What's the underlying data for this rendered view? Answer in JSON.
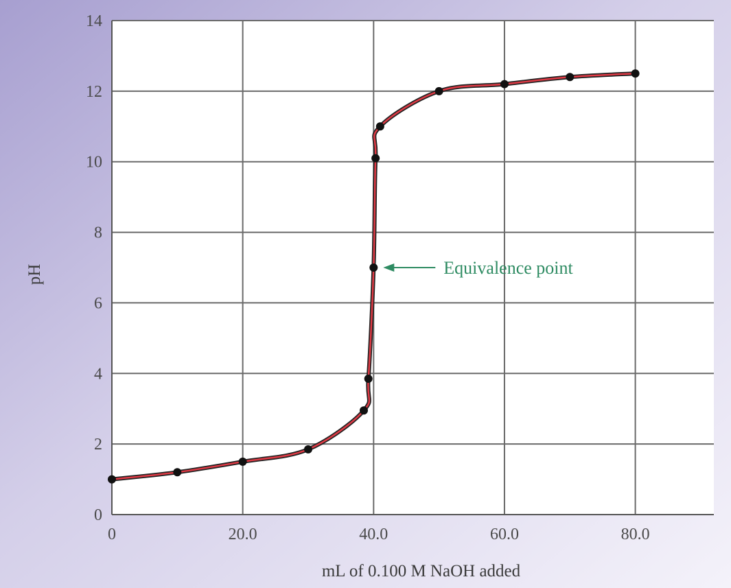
{
  "chart_data": {
    "type": "line",
    "xlabel": "mL of 0.100 M NaOH added",
    "ylabel": "pH",
    "xlim": [
      0,
      92
    ],
    "ylim": [
      0,
      14
    ],
    "x_ticks": [
      0,
      20,
      40,
      60,
      80
    ],
    "x_tick_labels": [
      "0",
      "20.0",
      "40.0",
      "60.0",
      "80.0"
    ],
    "y_ticks": [
      0,
      2,
      4,
      6,
      8,
      10,
      12,
      14
    ],
    "y_tick_labels": [
      "0",
      "2",
      "4",
      "6",
      "8",
      "10",
      "12",
      "14"
    ],
    "grid": true,
    "series": [
      {
        "points": [
          {
            "x": 0,
            "y": 1.0
          },
          {
            "x": 10,
            "y": 1.2
          },
          {
            "x": 20,
            "y": 1.5
          },
          {
            "x": 30,
            "y": 1.85
          },
          {
            "x": 38.5,
            "y": 2.95
          },
          {
            "x": 39.2,
            "y": 3.85
          },
          {
            "x": 40.0,
            "y": 7.0
          },
          {
            "x": 40.3,
            "y": 10.1
          },
          {
            "x": 41.0,
            "y": 11.0
          },
          {
            "x": 50,
            "y": 12.0
          },
          {
            "x": 60,
            "y": 12.2
          },
          {
            "x": 70,
            "y": 12.4
          },
          {
            "x": 80,
            "y": 12.5
          }
        ]
      }
    ],
    "annotations": [
      {
        "text": "Equivalence point",
        "x": 40.0,
        "y": 7.0
      }
    ],
    "colors": {
      "curve_outer": "#222222",
      "curve_inner": "#e03a45",
      "points": "#111111",
      "grid": "#6a6a6a",
      "annotation": "#2e8b62",
      "frame_gradient_top": "#9a92c8",
      "frame_gradient_bottom": "#f1eff8",
      "plot_bg": "#ffffff"
    }
  }
}
